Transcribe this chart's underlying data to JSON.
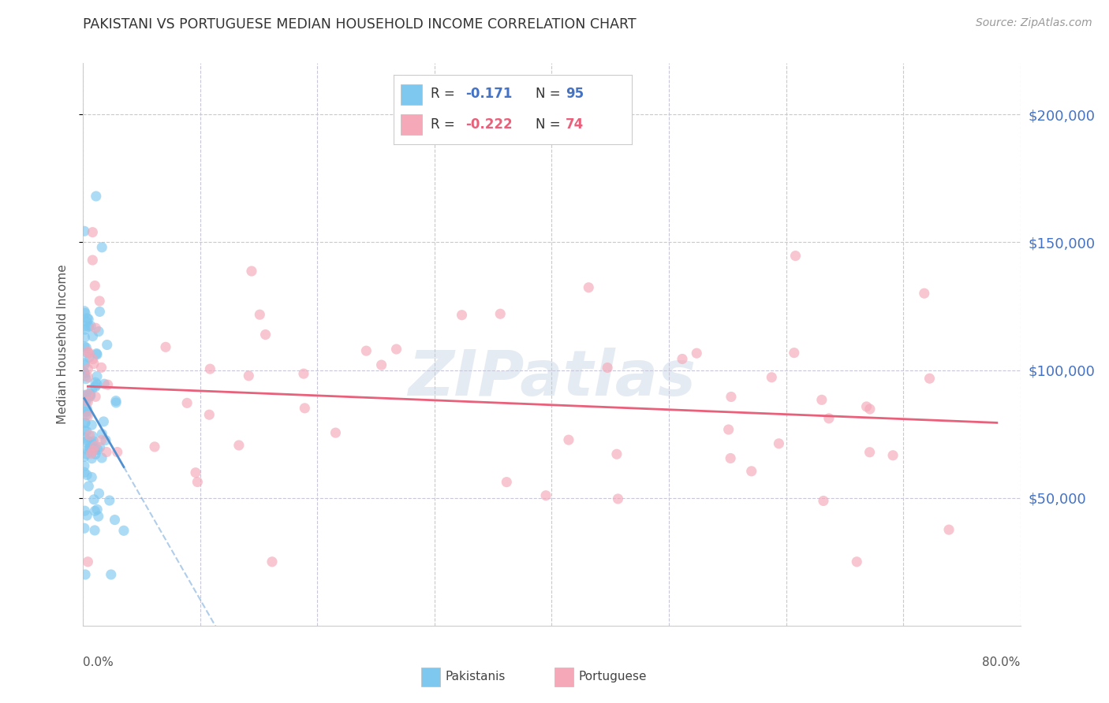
{
  "title": "PAKISTANI VS PORTUGUESE MEDIAN HOUSEHOLD INCOME CORRELATION CHART",
  "source": "Source: ZipAtlas.com",
  "ylabel": "Median Household Income",
  "r_pakistani": -0.171,
  "n_pakistani": 95,
  "r_portuguese": -0.222,
  "n_portuguese": 74,
  "xlim": [
    0.0,
    0.8
  ],
  "ylim": [
    0,
    220000
  ],
  "yticks": [
    50000,
    100000,
    150000,
    200000
  ],
  "ytick_labels": [
    "$50,000",
    "$100,000",
    "$150,000",
    "$200,000"
  ],
  "scatter_alpha": 0.65,
  "scatter_size": 90,
  "color_pakistani": "#7ec8f0",
  "color_portuguese": "#f5a8b8",
  "line_color_pakistani": "#5090d0",
  "line_color_portuguese": "#e8607a",
  "ytick_color": "#4472c4",
  "background_color": "#ffffff",
  "grid_color": "#c8c8d8",
  "title_color": "#333333",
  "source_color": "#999999",
  "label_color": "#555555",
  "watermark_color": "#d0dce8"
}
